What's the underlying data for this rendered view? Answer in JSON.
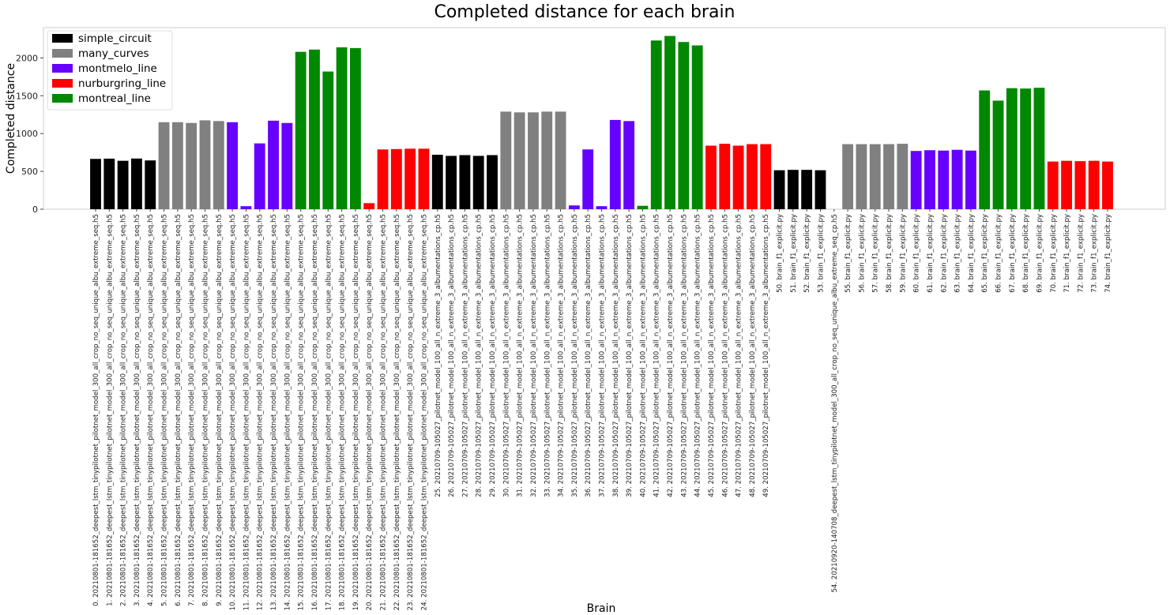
{
  "chart_data": {
    "type": "bar",
    "title": "Completed distance for each brain",
    "xlabel": "Brain",
    "ylabel": "Completed distance",
    "ylim": [
      0,
      2400
    ],
    "yticks": [
      0,
      500,
      1000,
      1500,
      2000
    ],
    "grid": false,
    "legend_position": "top-left",
    "legend": [
      {
        "name": "simple_circuit",
        "color": "#000000"
      },
      {
        "name": "many_curves",
        "color": "#808080"
      },
      {
        "name": "montmelo_line",
        "color": "#6600ff"
      },
      {
        "name": "nurburgring_line",
        "color": "#ff0000"
      },
      {
        "name": "montreal_line",
        "color": "#008800"
      }
    ],
    "categories": [
      "0. 20210801-181652_deepest_lstm_tinypilotnet_pilotnet_model_300_all_crop_no_seq_unique_albu_extreme_seq.h5",
      "1. 20210801-181652_deepest_lstm_tinypilotnet_pilotnet_model_300_all_crop_no_seq_unique_albu_extreme_seq.h5",
      "2. 20210801-181652_deepest_lstm_tinypilotnet_pilotnet_model_300_all_crop_no_seq_unique_albu_extreme_seq.h5",
      "3. 20210801-181652_deepest_lstm_tinypilotnet_pilotnet_model_300_all_crop_no_seq_unique_albu_extreme_seq.h5",
      "4. 20210801-181652_deepest_lstm_tinypilotnet_pilotnet_model_300_all_crop_no_seq_unique_albu_extreme_seq.h5",
      "5. 20210801-181652_deepest_lstm_tinypilotnet_pilotnet_model_300_all_crop_no_seq_unique_albu_extreme_seq.h5",
      "6. 20210801-181652_deepest_lstm_tinypilotnet_pilotnet_model_300_all_crop_no_seq_unique_albu_extreme_seq.h5",
      "7. 20210801-181652_deepest_lstm_tinypilotnet_pilotnet_model_300_all_crop_no_seq_unique_albu_extreme_seq.h5",
      "8. 20210801-181652_deepest_lstm_tinypilotnet_pilotnet_model_300_all_crop_no_seq_unique_albu_extreme_seq.h5",
      "9. 20210801-181652_deepest_lstm_tinypilotnet_pilotnet_model_300_all_crop_no_seq_unique_albu_extreme_seq.h5",
      "10. 20210801-181652_deepest_lstm_tinypilotnet_pilotnet_model_300_all_crop_no_seq_unique_albu_extreme_seq.h5",
      "11. 20210801-181652_deepest_lstm_tinypilotnet_pilotnet_model_300_all_crop_no_seq_unique_albu_extreme_seq.h5",
      "12. 20210801-181652_deepest_lstm_tinypilotnet_pilotnet_model_300_all_crop_no_seq_unique_albu_extreme_seq.h5",
      "13. 20210801-181652_deepest_lstm_tinypilotnet_pilotnet_model_300_all_crop_no_seq_unique_albu_extreme_seq.h5",
      "14. 20210801-181652_deepest_lstm_tinypilotnet_pilotnet_model_300_all_crop_no_seq_unique_albu_extreme_seq.h5",
      "15. 20210801-181652_deepest_lstm_tinypilotnet_pilotnet_model_300_all_crop_no_seq_unique_albu_extreme_seq.h5",
      "16. 20210801-181652_deepest_lstm_tinypilotnet_pilotnet_model_300_all_crop_no_seq_unique_albu_extreme_seq.h5",
      "17. 20210801-181652_deepest_lstm_tinypilotnet_pilotnet_model_300_all_crop_no_seq_unique_albu_extreme_seq.h5",
      "18. 20210801-181652_deepest_lstm_tinypilotnet_pilotnet_model_300_all_crop_no_seq_unique_albu_extreme_seq.h5",
      "19. 20210801-181652_deepest_lstm_tinypilotnet_pilotnet_model_300_all_crop_no_seq_unique_albu_extreme_seq.h5",
      "20. 20210801-181652_deepest_lstm_tinypilotnet_pilotnet_model_300_all_crop_no_seq_unique_albu_extreme_seq.h5",
      "21. 20210801-181652_deepest_lstm_tinypilotnet_pilotnet_model_300_all_crop_no_seq_unique_albu_extreme_seq.h5",
      "22. 20210801-181652_deepest_lstm_tinypilotnet_pilotnet_model_300_all_crop_no_seq_unique_albu_extreme_seq.h5",
      "23. 20210801-181652_deepest_lstm_tinypilotnet_pilotnet_model_300_all_crop_no_seq_unique_albu_extreme_seq.h5",
      "24. 20210801-181652_deepest_lstm_tinypilotnet_pilotnet_model_300_all_crop_no_seq_unique_albu_extreme_seq.h5",
      "25. 20210709-105027_pilotnet_model_100_all_n_extreme_3_albumentations_cp.h5",
      "26. 20210709-105027_pilotnet_model_100_all_n_extreme_3_albumentations_cp.h5",
      "27. 20210709-105027_pilotnet_model_100_all_n_extreme_3_albumentations_cp.h5",
      "28. 20210709-105027_pilotnet_model_100_all_n_extreme_3_albumentations_cp.h5",
      "29. 20210709-105027_pilotnet_model_100_all_n_extreme_3_albumentations_cp.h5",
      "30. 20210709-105027_pilotnet_model_100_all_n_extreme_3_albumentations_cp.h5",
      "31. 20210709-105027_pilotnet_model_100_all_n_extreme_3_albumentations_cp.h5",
      "32. 20210709-105027_pilotnet_model_100_all_n_extreme_3_albumentations_cp.h5",
      "33. 20210709-105027_pilotnet_model_100_all_n_extreme_3_albumentations_cp.h5",
      "34. 20210709-105027_pilotnet_model_100_all_n_extreme_3_albumentations_cp.h5",
      "35. 20210709-105027_pilotnet_model_100_all_n_extreme_3_albumentations_cp.h5",
      "36. 20210709-105027_pilotnet_model_100_all_n_extreme_3_albumentations_cp.h5",
      "37. 20210709-105027_pilotnet_model_100_all_n_extreme_3_albumentations_cp.h5",
      "38. 20210709-105027_pilotnet_model_100_all_n_extreme_3_albumentations_cp.h5",
      "39. 20210709-105027_pilotnet_model_100_all_n_extreme_3_albumentations_cp.h5",
      "40. 20210709-105027_pilotnet_model_100_all_n_extreme_3_albumentations_cp.h5",
      "41. 20210709-105027_pilotnet_model_100_all_n_extreme_3_albumentations_cp.h5",
      "42. 20210709-105027_pilotnet_model_100_all_n_extreme_3_albumentations_cp.h5",
      "43. 20210709-105027_pilotnet_model_100_all_n_extreme_3_albumentations_cp.h5",
      "44. 20210709-105027_pilotnet_model_100_all_n_extreme_3_albumentations_cp.h5",
      "45. 20210709-105027_pilotnet_model_100_all_n_extreme_3_albumentations_cp.h5",
      "46. 20210709-105027_pilotnet_model_100_all_n_extreme_3_albumentations_cp.h5",
      "47. 20210709-105027_pilotnet_model_100_all_n_extreme_3_albumentations_cp.h5",
      "48. 20210709-105027_pilotnet_model_100_all_n_extreme_3_albumentations_cp.h5",
      "49. 20210709-105027_pilotnet_model_100_all_n_extreme_3_albumentations_cp.h5",
      "50. brain_f1_explicit.py",
      "51. brain_f1_explicit.py",
      "52. brain_f1_explicit.py",
      "53. brain_f1_explicit.py",
      "54. 20210920-140708_deepest_lstm_tinypilotnet_model_300_all_crop_no_seq_unique_albu_extreme_seq_cp.h5",
      "55. brain_f1_explicit.py",
      "56. brain_f1_explicit.py",
      "57. brain_f1_explicit.py",
      "58. brain_f1_explicit.py",
      "59. brain_f1_explicit.py",
      "60. brain_f1_explicit.py",
      "61. brain_f1_explicit.py",
      "62. brain_f1_explicit.py",
      "63. brain_f1_explicit.py",
      "64. brain_f1_explicit.py",
      "65. brain_f1_explicit.py",
      "66. brain_f1_explicit.py",
      "67. brain_f1_explicit.py",
      "68. brain_f1_explicit.py",
      "69. brain_f1_explicit.py",
      "70. brain_f1_explicit.py",
      "71. brain_f1_explicit.py",
      "72. brain_f1_explicit.py",
      "73. brain_f1_explicit.py",
      "74. brain_f1_explicit.py"
    ],
    "values": [
      665,
      668,
      640,
      670,
      645,
      1150,
      1150,
      1140,
      1175,
      1165,
      1150,
      40,
      870,
      1170,
      1140,
      2080,
      2110,
      1820,
      2140,
      2130,
      80,
      790,
      795,
      800,
      800,
      720,
      705,
      715,
      705,
      715,
      1290,
      1280,
      1280,
      1290,
      1290,
      50,
      790,
      40,
      1180,
      1165,
      45,
      2230,
      2290,
      2210,
      2165,
      840,
      865,
      840,
      860,
      860,
      515,
      520,
      520,
      515,
      0,
      860,
      860,
      860,
      860,
      865,
      770,
      780,
      775,
      785,
      775,
      1570,
      1435,
      1600,
      1595,
      1605,
      630,
      640,
      635,
      640,
      630
    ],
    "color_groups": [
      "simple_circuit",
      "simple_circuit",
      "simple_circuit",
      "simple_circuit",
      "simple_circuit",
      "many_curves",
      "many_curves",
      "many_curves",
      "many_curves",
      "many_curves",
      "montmelo_line",
      "montmelo_line",
      "montmelo_line",
      "montmelo_line",
      "montmelo_line",
      "montreal_line",
      "montreal_line",
      "montreal_line",
      "montreal_line",
      "montreal_line",
      "nurburgring_line",
      "nurburgring_line",
      "nurburgring_line",
      "nurburgring_line",
      "nurburgring_line",
      "simple_circuit",
      "simple_circuit",
      "simple_circuit",
      "simple_circuit",
      "simple_circuit",
      "many_curves",
      "many_curves",
      "many_curves",
      "many_curves",
      "many_curves",
      "montmelo_line",
      "montmelo_line",
      "montmelo_line",
      "montmelo_line",
      "montmelo_line",
      "montreal_line",
      "montreal_line",
      "montreal_line",
      "montreal_line",
      "montreal_line",
      "nurburgring_line",
      "nurburgring_line",
      "nurburgring_line",
      "nurburgring_line",
      "nurburgring_line",
      "simple_circuit",
      "simple_circuit",
      "simple_circuit",
      "simple_circuit",
      "simple_circuit",
      "many_curves",
      "many_curves",
      "many_curves",
      "many_curves",
      "many_curves",
      "montmelo_line",
      "montmelo_line",
      "montmelo_line",
      "montmelo_line",
      "montmelo_line",
      "montreal_line",
      "montreal_line",
      "montreal_line",
      "montreal_line",
      "montreal_line",
      "nurburgring_line",
      "nurburgring_line",
      "nurburgring_line",
      "nurburgring_line",
      "nurburgring_line"
    ]
  }
}
